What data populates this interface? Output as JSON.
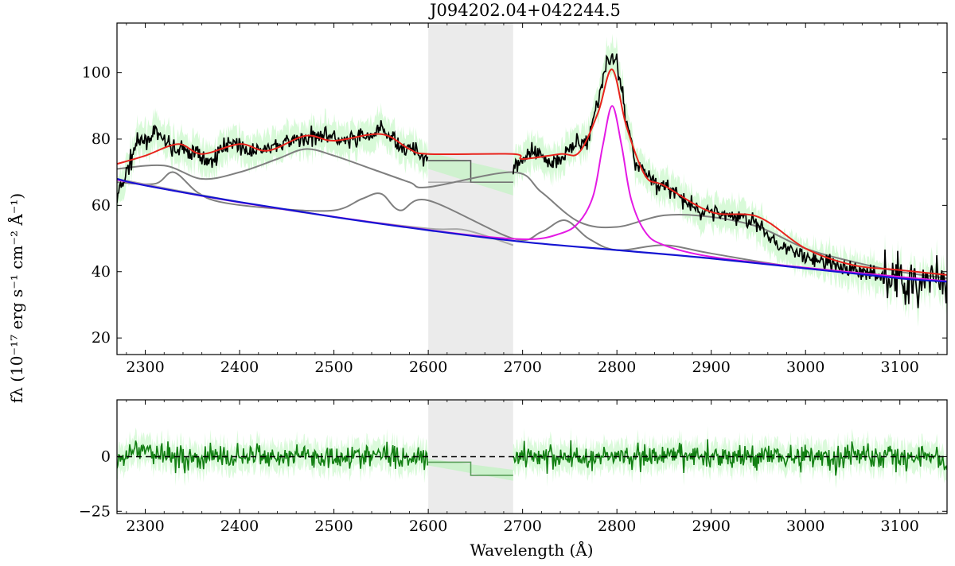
{
  "figure": {
    "title": "J094202.04+042244.5",
    "ylabel": "fλ (10⁻¹⁷ erg s⁻¹ cm⁻² Å⁻¹)",
    "xlabel": "Wavelength (Å)"
  },
  "colors": {
    "data": "#000000",
    "data_error": "#b8f5b8",
    "total_model": "#e8231c",
    "continuum": "#1414d2",
    "mgii_line": "#e41ae4",
    "components": "#7f7f7f",
    "residual": "#138013",
    "masked_region": "#ebebeb"
  },
  "chart_data": [
    {
      "id": "spectrum",
      "type": "line",
      "title": "J094202.04+042244.5",
      "xlabel": "",
      "ylabel": "fλ (10⁻¹⁷ erg s⁻¹ cm⁻² Å⁻¹)",
      "xlim": [
        2270,
        3150
      ],
      "ylim": [
        15,
        115
      ],
      "xticks": [
        2300,
        2400,
        2500,
        2600,
        2700,
        2800,
        2900,
        3000,
        3100
      ],
      "yticks": [
        20,
        40,
        60,
        80,
        100
      ],
      "masked_region": [
        2600,
        2690
      ],
      "grid": false,
      "series": [
        {
          "role": "continuum",
          "x": [
            2270,
            2300,
            2400,
            2500,
            2600,
            2700,
            2800,
            2900,
            3000,
            3100,
            3150
          ],
          "y": [
            68,
            66,
            61,
            56.5,
            52.5,
            49,
            46.5,
            44,
            41,
            38,
            37
          ]
        },
        {
          "role": "mgii_line",
          "x": [
            2270,
            2400,
            2600,
            2700,
            2740,
            2760,
            2775,
            2785,
            2795,
            2805,
            2815,
            2830,
            2850,
            2900,
            3000,
            3150
          ],
          "y": [
            67.7,
            60.9,
            52.6,
            49.8,
            51.5,
            55,
            63,
            78,
            90,
            78,
            62,
            52,
            48,
            44.5,
            41.2,
            37.1
          ]
        },
        {
          "role": "total_model",
          "x": [
            2270,
            2300,
            2335,
            2360,
            2400,
            2430,
            2470,
            2500,
            2550,
            2580,
            2600,
            2690,
            2700,
            2740,
            2760,
            2780,
            2795,
            2810,
            2830,
            2850,
            2900,
            2950,
            3000,
            3050,
            3100,
            3150
          ],
          "y": [
            72.5,
            75,
            78.5,
            75.5,
            78.5,
            76.5,
            81,
            79.5,
            81.5,
            77,
            75.5,
            75.5,
            74,
            75.5,
            76,
            88,
            101,
            84,
            69,
            66,
            58,
            56.5,
            47,
            42,
            40.5,
            39
          ]
        },
        {
          "role": "fe_template_1",
          "x": [
            2270,
            2320,
            2360,
            2400,
            2440,
            2470,
            2500,
            2540,
            2580,
            2600,
            2690,
            2720,
            2760,
            2800,
            2850,
            2900,
            2950,
            3000,
            3050,
            3100,
            3150
          ],
          "y": [
            71,
            72,
            68,
            70,
            74,
            77,
            75,
            71,
            67,
            65.5,
            70,
            64,
            55,
            53.5,
            57,
            56.5,
            53.5,
            47,
            43,
            40,
            38
          ]
        },
        {
          "role": "fe_template_2",
          "x": [
            2270,
            2310,
            2330,
            2355,
            2380,
            2440,
            2500,
            2530,
            2550,
            2570,
            2600,
            2690,
            2720,
            2745,
            2770,
            2800,
            2850,
            2900,
            3000,
            3150
          ],
          "y": [
            67,
            66.5,
            70,
            64,
            61,
            59,
            58.5,
            62,
            63.5,
            58.5,
            61.5,
            50,
            52,
            55.5,
            50,
            46.5,
            48,
            45.5,
            41,
            37
          ]
        },
        {
          "role": "balmer_continuum",
          "x": [
            2270,
            2400,
            2500,
            2600,
            2640,
            2690
          ],
          "y": [
            68,
            61,
            56.5,
            53,
            52.5,
            48
          ]
        },
        {
          "role": "data",
          "x": [
            2270,
            2290,
            2310,
            2330,
            2350,
            2370,
            2390,
            2410,
            2430,
            2450,
            2470,
            2490,
            2510,
            2530,
            2550,
            2570,
            2590,
            2600,
            2690,
            2710,
            2730,
            2750,
            2770,
            2780,
            2790,
            2800,
            2810,
            2820,
            2840,
            2860,
            2880,
            2900,
            2920,
            2940,
            2960,
            2980,
            3000,
            3020,
            3040,
            3060,
            3080,
            3100,
            3120,
            3140,
            3150
          ],
          "y": [
            62,
            78,
            82,
            77,
            76,
            73,
            80,
            76,
            77,
            79,
            80,
            82,
            79,
            80,
            83,
            78,
            76,
            74,
            72,
            76,
            73,
            77,
            80,
            92,
            104,
            104,
            86,
            73,
            67,
            64,
            59,
            58,
            57,
            56,
            51,
            47,
            44,
            43,
            41,
            40,
            39,
            37,
            37,
            38,
            32
          ]
        },
        {
          "role": "data_masked",
          "x": [
            2600,
            2645,
            2645,
            2690
          ],
          "y": [
            73.5,
            73.5,
            67,
            67
          ]
        }
      ]
    },
    {
      "id": "residual",
      "type": "line",
      "title": "",
      "xlabel": "Wavelength (Å)",
      "ylabel": "",
      "xlim": [
        2270,
        3150
      ],
      "ylim": [
        -26,
        26
      ],
      "xticks": [
        2300,
        2400,
        2500,
        2600,
        2700,
        2800,
        2900,
        3000,
        3100
      ],
      "yticks": [
        -25,
        0
      ],
      "masked_region": [
        2600,
        2690
      ],
      "grid": false,
      "series": [
        {
          "role": "residual",
          "x": [
            2270,
            2290,
            2310,
            2330,
            2350,
            2370,
            2390,
            2410,
            2430,
            2450,
            2470,
            2490,
            2510,
            2530,
            2550,
            2570,
            2590,
            2600,
            2690,
            2710,
            2730,
            2750,
            2770,
            2790,
            2810,
            2830,
            2850,
            2870,
            2890,
            2910,
            2930,
            2950,
            2970,
            2990,
            3010,
            3030,
            3050,
            3070,
            3090,
            3110,
            3130,
            3150
          ],
          "y": [
            -10,
            8,
            5,
            2,
            -3,
            1,
            -2,
            2,
            -1,
            1,
            3,
            -2,
            2,
            -1,
            3,
            -2,
            1,
            0,
            0,
            3,
            -2,
            1,
            -3,
            2,
            -1,
            2,
            -2,
            1,
            -1,
            2,
            -2,
            1,
            5,
            -2,
            3,
            -3,
            6,
            -2,
            2,
            -3,
            1,
            -8
          ]
        },
        {
          "role": "residual_masked",
          "x": [
            2600,
            2645,
            2645,
            2690
          ],
          "y": [
            -2.5,
            -2.5,
            -8.5,
            -8.5
          ]
        },
        {
          "role": "zero_line",
          "x": [
            2270,
            3150
          ],
          "y": [
            0,
            0
          ]
        }
      ]
    }
  ]
}
